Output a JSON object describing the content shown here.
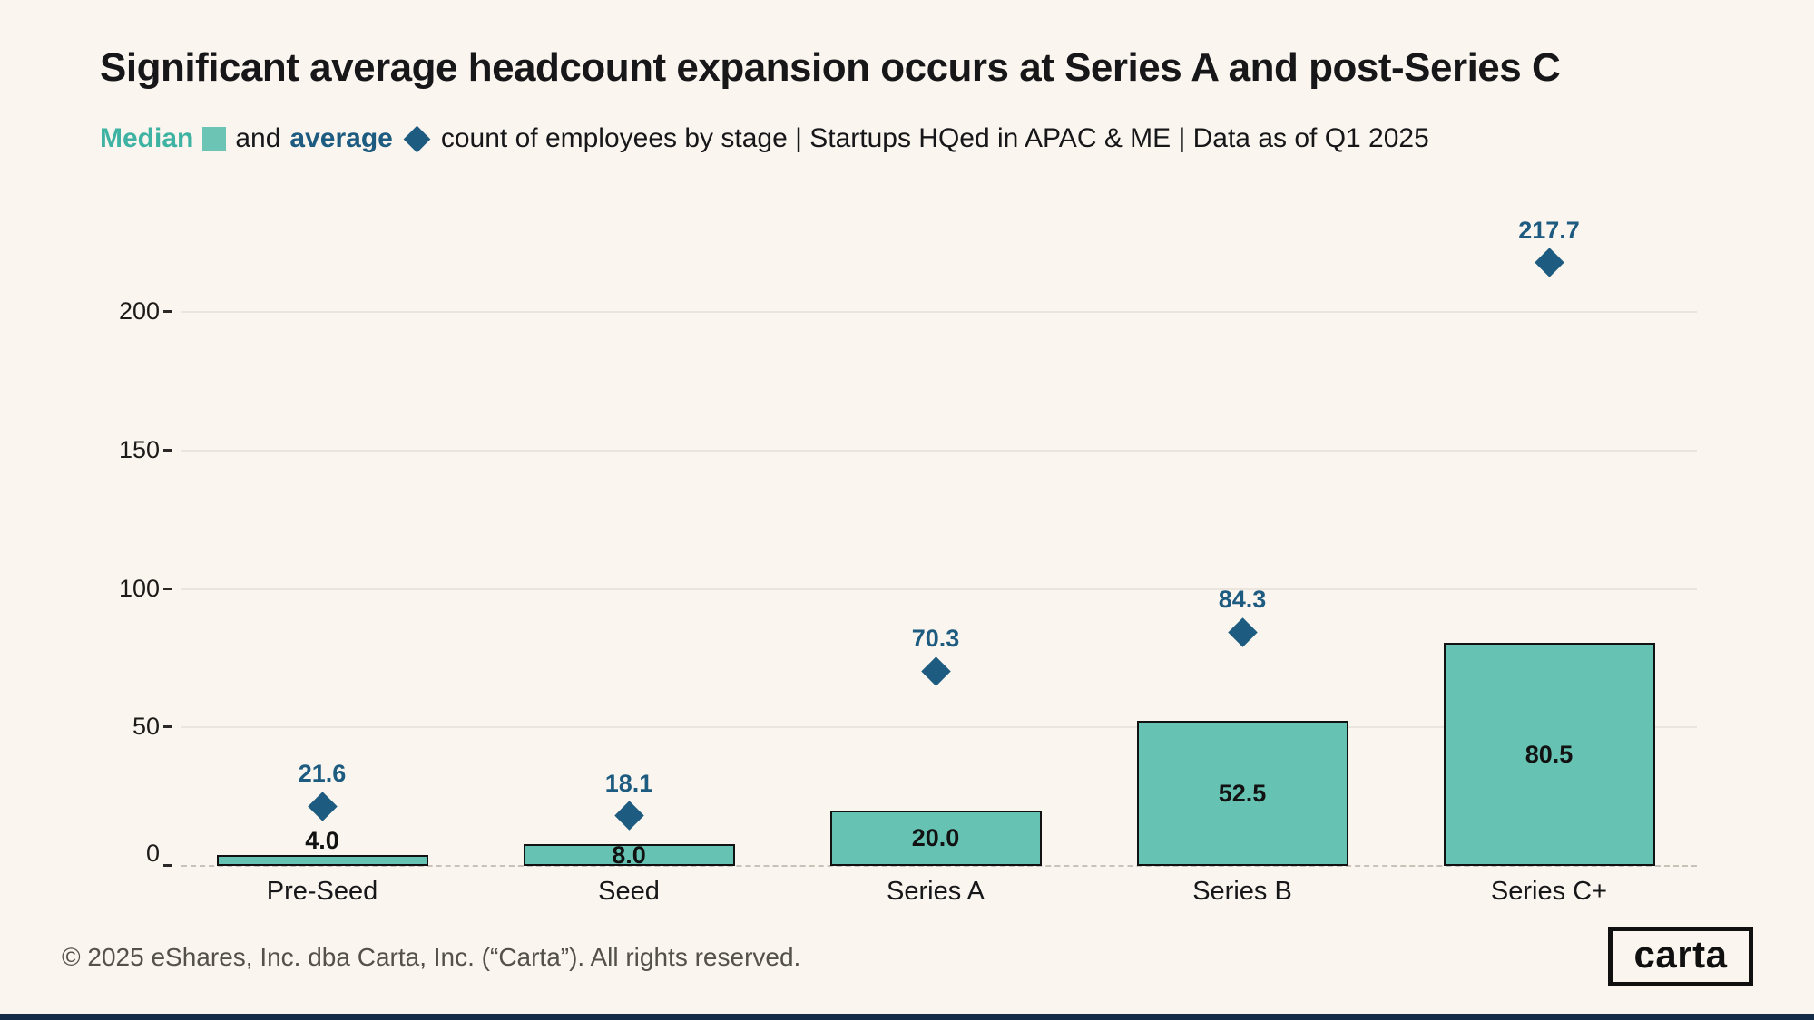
{
  "colors": {
    "background": "#faf5ee",
    "teal": "#66c2b2",
    "teal_light": "#6cc4b5",
    "teal_text": "#3fb3a3",
    "blue": "#1d5b80",
    "bar_border": "#121212",
    "gridline": "#ebe5de",
    "zero_line": "#c9c2b9",
    "bottom_strip": "#142c47"
  },
  "header": {
    "title": "Significant average headcount expansion occurs at Series A and post-Series C",
    "subtitle": {
      "median_word": "Median",
      "and_word": "and",
      "average_word": "average",
      "rest": "count of employees by stage | Startups HQed in APAC & ME | Data as of Q1 2025"
    }
  },
  "chart_data": {
    "type": "bar",
    "title": "Significant average headcount expansion occurs at Series A and post-Series C",
    "xlabel": "",
    "ylabel": "",
    "categories": [
      "Pre-Seed",
      "Seed",
      "Series A",
      "Series B",
      "Series C+"
    ],
    "series": [
      {
        "name": "Median",
        "type": "bar",
        "color": "#66c2b2",
        "values": [
          4.0,
          8.0,
          20.0,
          52.5,
          80.5
        ],
        "labels": [
          "4.0",
          "8.0",
          "20.0",
          "52.5",
          "80.5"
        ]
      },
      {
        "name": "Average",
        "type": "scatter",
        "marker": "diamond",
        "color": "#1d5b80",
        "values": [
          21.6,
          18.1,
          70.3,
          84.3,
          217.7
        ],
        "labels": [
          "21.6",
          "18.1",
          "70.3",
          "84.3",
          "217.7"
        ]
      }
    ],
    "yticks": [
      0,
      50,
      100,
      150,
      200
    ],
    "ylim": [
      0,
      237
    ],
    "grid": "horizontal",
    "legend_position": "inline-in-subtitle"
  },
  "footer": {
    "copyright": "© 2025 eShares, Inc. dba Carta, Inc. (“Carta”). All rights reserved.",
    "logo_text": "carta"
  }
}
